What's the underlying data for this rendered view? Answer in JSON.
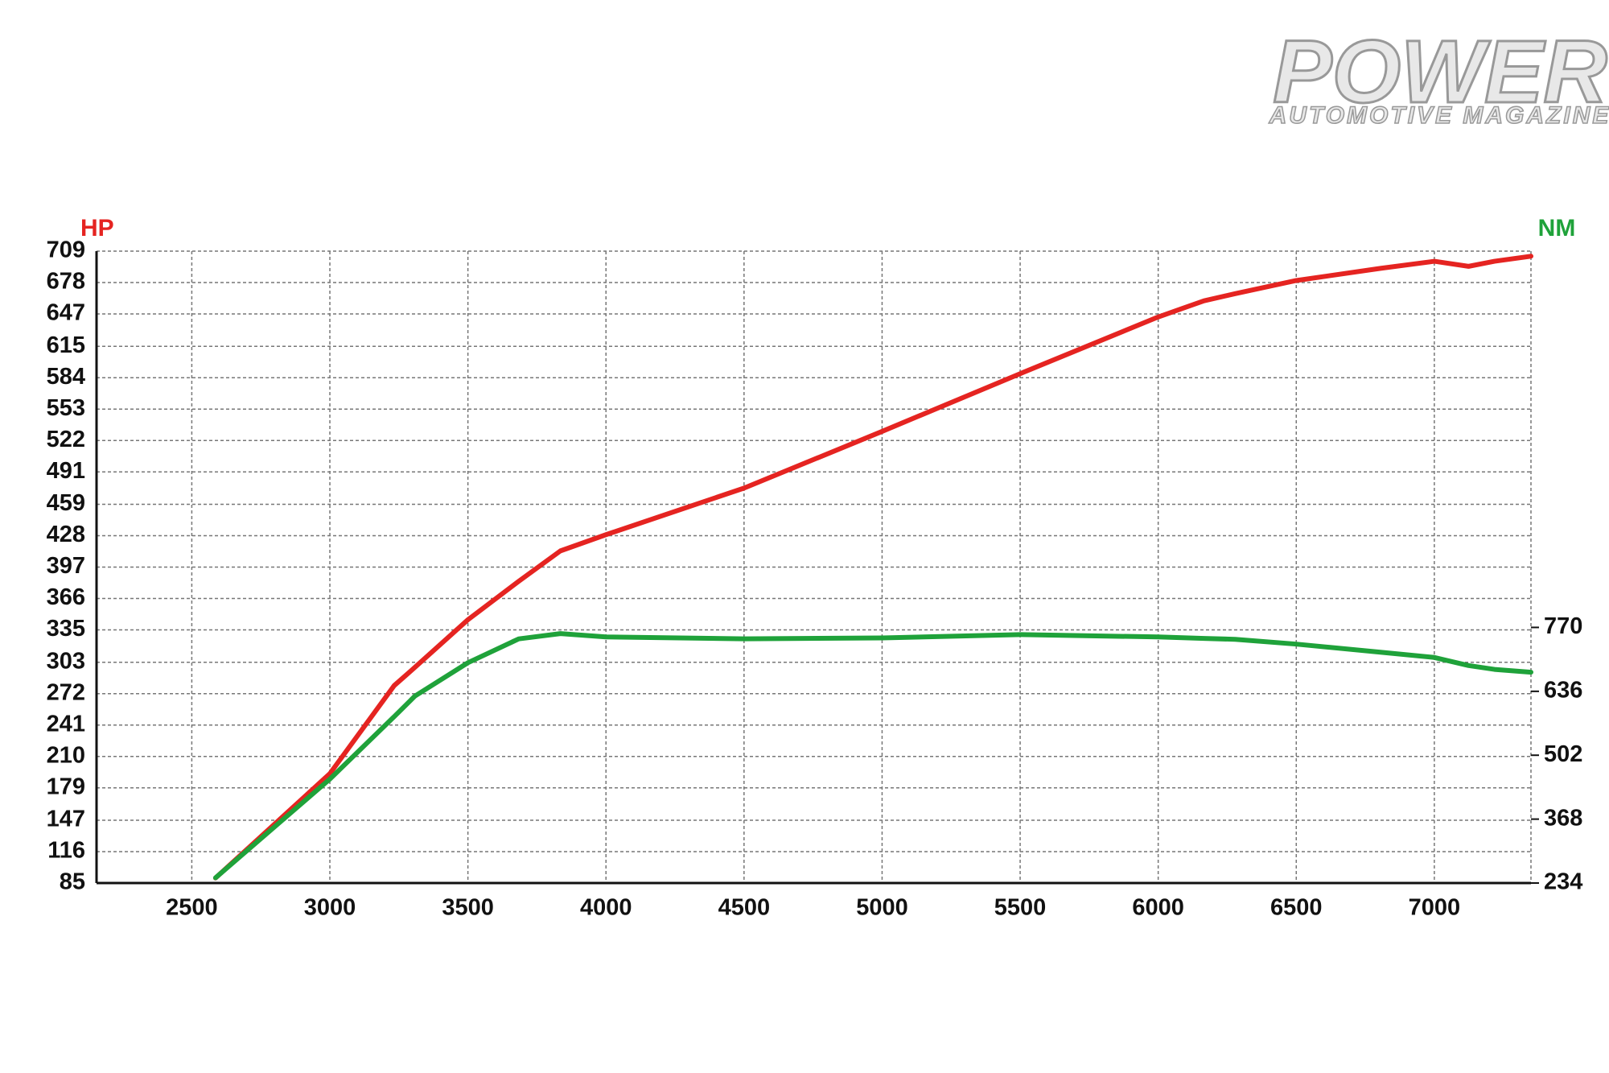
{
  "logo": {
    "title": "POWER",
    "subtitle": "AUTOMOTIVE MAGAZINE"
  },
  "chart_data": {
    "type": "line",
    "y_label": "HP",
    "y2_label": "NM",
    "x": [
      2586,
      3000,
      3233,
      3308,
      3500,
      3684,
      3835,
      4000,
      4500,
      5000,
      5500,
      6000,
      6166,
      6279,
      6500,
      6805,
      7000,
      7124,
      7218,
      7350
    ],
    "series": [
      {
        "name": "HP",
        "color": "#e52421",
        "values": [
          90,
          193,
          280,
          298,
          345,
          383,
          413,
          429,
          475,
          531,
          588,
          644,
          660,
          667,
          680,
          692,
          699,
          694,
          699,
          704
        ]
      },
      {
        "name": "NM",
        "color": "#1fa23a",
        "axis": "y2",
        "values": [
          245,
          452,
          583,
          626,
          696,
          746,
          757,
          750,
          746,
          748,
          755,
          750,
          747,
          745,
          735,
          718,
          707,
          690,
          682,
          676
        ]
      }
    ],
    "xlim": [
      2155,
      7350
    ],
    "xticks": [
      2500,
      3000,
      3500,
      4000,
      4500,
      5000,
      5500,
      6000,
      6500,
      7000
    ],
    "ylim": [
      85,
      709
    ],
    "yticks": [
      85,
      116,
      147,
      179,
      210,
      241,
      272,
      303,
      335,
      366,
      397,
      428,
      459,
      491,
      522,
      553,
      584,
      615,
      647,
      678,
      709
    ],
    "y2lim": [
      234,
      1559
    ],
    "y2ticks": [
      234,
      368,
      502,
      636,
      770
    ],
    "grid": true
  }
}
